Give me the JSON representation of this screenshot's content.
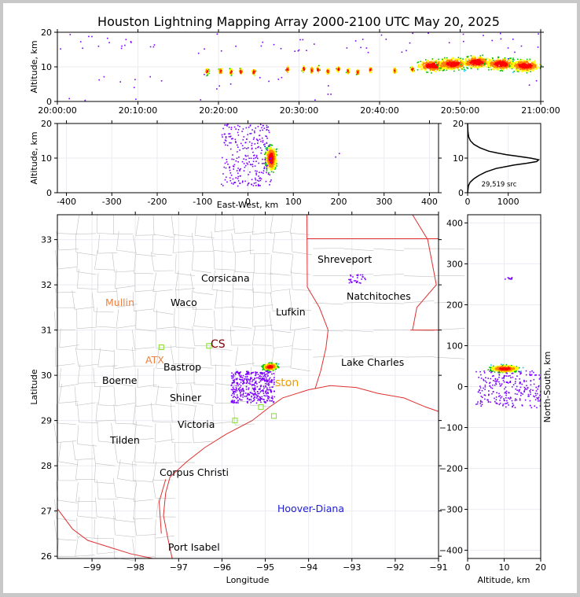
{
  "title": "Houston Lightning Mapping Array 2000-2100 UTC May 20, 2025",
  "chart_data": [
    {
      "type": "scatter",
      "panel": "altitude-vs-time",
      "ylabel": "Altitude, km",
      "xlim": [
        "20:00:00",
        "21:00:00"
      ],
      "ylim": [
        0,
        20
      ],
      "xticks": [
        "20:00:00",
        "20:10:00",
        "20:20:00",
        "20:30:00",
        "20:40:00",
        "20:50:00",
        "21:00:00"
      ],
      "yticks": [
        "0",
        "10",
        "20"
      ],
      "clusters": [
        {
          "t_min": 18.5,
          "alt_km": 8.8
        },
        {
          "t_min": 20.2,
          "alt_km": 8.9
        },
        {
          "t_min": 21.5,
          "alt_km": 8.7
        },
        {
          "t_min": 22.7,
          "alt_km": 8.8
        },
        {
          "t_min": 24.3,
          "alt_km": 8.7
        },
        {
          "t_min": 28.5,
          "alt_km": 9.4
        },
        {
          "t_min": 30.5,
          "alt_km": 9.6
        },
        {
          "t_min": 31.5,
          "alt_km": 9.2
        },
        {
          "t_min": 32.3,
          "alt_km": 9.4
        },
        {
          "t_min": 33.5,
          "alt_km": 8.9
        },
        {
          "t_min": 34.8,
          "alt_km": 9.5
        },
        {
          "t_min": 36.0,
          "alt_km": 9.0
        },
        {
          "t_min": 37.2,
          "alt_km": 8.7
        },
        {
          "t_min": 38.8,
          "alt_km": 9.3
        },
        {
          "t_min": 41.8,
          "alt_km": 9.1
        },
        {
          "t_min": 44.0,
          "alt_km": 9.5
        },
        {
          "t_min": 46.5,
          "alt_km": 10.5
        },
        {
          "t_min": 49.0,
          "alt_km": 11.0
        },
        {
          "t_min": 52.0,
          "alt_km": 11.5
        },
        {
          "t_min": 55.0,
          "alt_km": 11.0
        },
        {
          "t_min": 58.0,
          "alt_km": 10.5
        }
      ]
    },
    {
      "type": "scatter",
      "panel": "altitude-vs-east-west",
      "xlabel": "East-West, km",
      "ylabel": "Altitude, km",
      "xlim": [
        -420,
        420
      ],
      "ylim": [
        0,
        20
      ],
      "xticks": [
        "-400",
        "-300",
        "-200",
        "-100",
        "0",
        "100",
        "200",
        "300",
        "400"
      ],
      "yticks": [
        "0",
        "10",
        "20"
      ],
      "core": {
        "ew_km": 50,
        "alt_km": 10
      }
    },
    {
      "type": "line",
      "panel": "altitude-histogram",
      "xlim": [
        0,
        1800
      ],
      "ylim": [
        0,
        20
      ],
      "xticks": [
        "0",
        "1000"
      ],
      "yticks": [
        "0",
        "10",
        "20"
      ],
      "annotation": "29,519 src",
      "altitude_km": [
        0,
        2,
        3,
        4,
        5,
        6,
        7,
        8,
        8.5,
        9,
        9.5,
        10,
        10.5,
        11,
        11.5,
        12,
        13,
        14,
        15,
        16,
        17,
        18,
        20
      ],
      "count": [
        0,
        20,
        60,
        150,
        280,
        450,
        700,
        1150,
        1450,
        1700,
        1750,
        1550,
        1250,
        950,
        720,
        520,
        300,
        150,
        70,
        30,
        15,
        5,
        0
      ]
    },
    {
      "type": "scatter",
      "panel": "plan-view-map",
      "xlabel": "Longitude",
      "ylabel": "Latitude",
      "xlim": [
        -99.8,
        -91
      ],
      "ylim": [
        25.95,
        33.55
      ],
      "xticks": [
        "−99",
        "−98",
        "−97",
        "−96",
        "−95",
        "−94",
        "−93",
        "−92",
        "−91"
      ],
      "yticks": [
        "26",
        "27",
        "28",
        "29",
        "30",
        "31",
        "32",
        "33"
      ],
      "core": {
        "lon": -94.9,
        "lat": 30.2
      }
    },
    {
      "type": "scatter",
      "panel": "north-south-vs-altitude",
      "xlabel": "Altitude, km",
      "ylabel": "North-South, km",
      "xlim": [
        0,
        20
      ],
      "ylim": [
        -420,
        420
      ],
      "xticks": [
        "0",
        "10",
        "20"
      ],
      "yticks": [
        "−400",
        "−300",
        "−200",
        "−100",
        "0",
        "100",
        "200",
        "300",
        "400"
      ],
      "core": {
        "alt_km": 10,
        "ns_km": 45
      }
    }
  ],
  "map_labels": {
    "shreveport": "Shreveport",
    "corsicana": "Corsicana",
    "mullin": "Mullin",
    "waco": "Waco",
    "natchitoches": "Natchitoches",
    "lufkin": "Lufkin",
    "cs": "CS",
    "atx": "ATX",
    "bastrop": "Bastrop",
    "lake_charles": "Lake Charles",
    "boerne": "Boerne",
    "houston": "ston",
    "shiner": "Shiner",
    "victoria": "Victoria",
    "tilden": "Tilden",
    "corpus_christi": "Corpus Christi",
    "hoover_diana": "Hoover-Diana",
    "port_isabel": "Port Isabel"
  },
  "colors": {
    "state_border": "#e03030",
    "county_line": "#c0c0c0",
    "mullin": "#f08040",
    "atx": "#f08040",
    "houston": "#f0a000",
    "cs": "#800000",
    "hoover_diana": "#2020d0",
    "station": "#80e020",
    "hist_line": "#000000",
    "density_scale": [
      "#7a00ff",
      "#0000ff",
      "#00c8ff",
      "#00c000",
      "#ffff00",
      "#ff8000",
      "#ff0000",
      "#ffffff"
    ]
  }
}
